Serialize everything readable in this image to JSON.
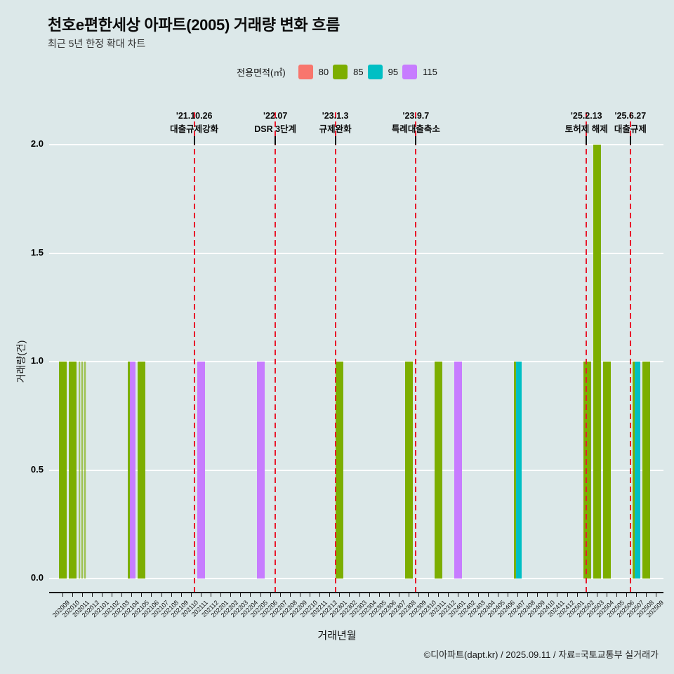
{
  "title": "천호e편한세상 아파트(2005) 거래량 변화 흐름",
  "subtitle": "최근 5년 한정 확대 차트",
  "legend": {
    "label": "전용면적(㎡)",
    "items": [
      {
        "name": "80",
        "color": "#F8766D"
      },
      {
        "name": "85",
        "color": "#7CAE00"
      },
      {
        "name": "95",
        "color": "#00BFC4"
      },
      {
        "name": "115",
        "color": "#C77CFF"
      }
    ]
  },
  "chart_data": {
    "type": "bar",
    "title": "천호e편한세상 아파트(2005) 거래량 변화 흐름",
    "xlabel": "거래년월",
    "ylabel": "거래량(건)",
    "ylim": [
      0,
      2.0
    ],
    "yticks": [
      0.0,
      0.5,
      1.0,
      1.5,
      2.0
    ],
    "categories": [
      "202009",
      "202010",
      "202011",
      "202012",
      "202101",
      "202102",
      "202103",
      "202104",
      "202105",
      "202106",
      "202107",
      "202108",
      "202109",
      "202110",
      "202111",
      "202112",
      "202201",
      "202202",
      "202203",
      "202204",
      "202205",
      "202206",
      "202207",
      "202208",
      "202209",
      "202210",
      "202211",
      "202212",
      "202301",
      "202302",
      "202303",
      "202304",
      "202305",
      "202306",
      "202307",
      "202308",
      "202309",
      "202310",
      "202311",
      "202312",
      "202401",
      "202402",
      "202403",
      "202404",
      "202405",
      "202406",
      "202407",
      "202408",
      "202409",
      "202410",
      "202411",
      "202412",
      "202501",
      "202502",
      "202503",
      "202504",
      "202505",
      "202506",
      "202507",
      "202508",
      "202509"
    ],
    "series": [
      {
        "name": "80",
        "color": "#F8766D",
        "bars": []
      },
      {
        "name": "85",
        "color": "#7CAE00",
        "bars": [
          {
            "month": "202009",
            "value": 1
          },
          {
            "month": "202010",
            "value": 1
          },
          {
            "month": "202011",
            "value": 1,
            "pattern": "striped"
          },
          {
            "month": "202104",
            "value": 1
          },
          {
            "month": "202105",
            "value": 1
          },
          {
            "month": "202301",
            "value": 1
          },
          {
            "month": "202308",
            "value": 1
          },
          {
            "month": "202311",
            "value": 1
          },
          {
            "month": "202407",
            "value": 1
          },
          {
            "month": "202502",
            "value": 1
          },
          {
            "month": "202503",
            "value": 2
          },
          {
            "month": "202504",
            "value": 1
          },
          {
            "month": "202507",
            "value": 1
          },
          {
            "month": "202508",
            "value": 1
          }
        ]
      },
      {
        "name": "95",
        "color": "#00BFC4",
        "bars": [
          {
            "month": "202407",
            "value": 1
          },
          {
            "month": "202507",
            "value": 1
          }
        ]
      },
      {
        "name": "115",
        "color": "#C77CFF",
        "bars": [
          {
            "month": "202104",
            "value": 1
          },
          {
            "month": "202111",
            "value": 1
          },
          {
            "month": "202205",
            "value": 1
          },
          {
            "month": "202401",
            "value": 1
          }
        ]
      }
    ],
    "events": [
      {
        "date": "'21.10.26",
        "label": "대출규제강화",
        "x_index": 13.81
      },
      {
        "date": "'22.07",
        "label": "DSR 3단계",
        "x_index": 22.0
      },
      {
        "date": "'23.1.3",
        "label": "규제완화",
        "x_index": 28.06
      },
      {
        "date": "'23.9.7",
        "label": "특례대출축소",
        "x_index": 36.2
      },
      {
        "date": "'25.2.13",
        "label": "토허제 해제",
        "x_index": 53.43
      },
      {
        "date": "'25.6.27",
        "label": "대출규제",
        "x_index": 57.87
      }
    ],
    "grid": "horizontal-white",
    "legend_position": "top-center",
    "event_line_color": "#e8192c"
  },
  "footer": "©디아파트(dapt.kr) / 2025.09.11 / 자료=국토교통부 실거래가"
}
